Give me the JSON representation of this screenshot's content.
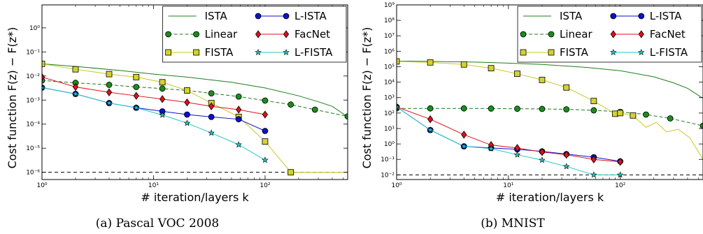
{
  "colors": {
    "ista": "#1e7d1e",
    "linear": "#1a7a1a",
    "linear_marker": "#1c8c1c",
    "fista": "#c8c81e",
    "fista_marker": "#d2d232",
    "l_ista": "#0b11cc",
    "facnet": "#e0101a",
    "l_fista": "#20c8c8",
    "reference": "#000000"
  },
  "chart_data": [
    {
      "type": "line",
      "caption": "(a) Pascal VOC 2008",
      "xlabel": "# iteration/layers k",
      "ylabel": "Cost function F(z) − F(z*)",
      "xscale": "log",
      "yscale": "log",
      "xlim": [
        1,
        550
      ],
      "ylim": [
        5e-07,
        9
      ],
      "xticks": [
        {
          "v": 1,
          "label": "10⁰"
        },
        {
          "v": 10,
          "label": "10¹"
        },
        {
          "v": 100,
          "label": "10²"
        }
      ],
      "yticks": [
        {
          "v": 1e-06,
          "label": "10⁻⁶"
        },
        {
          "v": 1e-05,
          "label": "10⁻⁵"
        },
        {
          "v": 0.0001,
          "label": "10⁻⁴"
        },
        {
          "v": 0.001,
          "label": "10⁻³"
        },
        {
          "v": 0.01,
          "label": "10⁻²"
        },
        {
          "v": 0.1,
          "label": "10⁻¹"
        },
        {
          "v": 1,
          "label": "10⁰"
        }
      ],
      "legend": "top-right",
      "reference_line": 1e-06,
      "series": [
        {
          "key": "ista",
          "name": "ISTA",
          "marker": "none",
          "dash": false,
          "x": [
            1,
            2,
            5,
            10,
            20,
            50,
            100,
            200,
            300,
            400,
            550
          ],
          "y": [
            0.032,
            0.025,
            0.017,
            0.012,
            0.009,
            0.0055,
            0.0032,
            0.0015,
            0.00085,
            0.00055,
            0.0002
          ]
        },
        {
          "key": "linear",
          "name": "Linear",
          "marker": "circle",
          "dash": true,
          "x": [
            1,
            2,
            4,
            7,
            12,
            20,
            33,
            58,
            100,
            170,
            280,
            550
          ],
          "y": [
            0.0065,
            0.0052,
            0.0043,
            0.0035,
            0.003,
            0.0025,
            0.0019,
            0.0014,
            0.00095,
            0.00065,
            0.0004,
            0.00021
          ]
        },
        {
          "key": "fista",
          "name": "FISTA",
          "marker": "square",
          "dash": false,
          "x": [
            1,
            2,
            4,
            7,
            12,
            20,
            33,
            58,
            100,
            170,
            280,
            550
          ],
          "y": [
            0.032,
            0.019,
            0.012,
            0.009,
            0.0055,
            0.0025,
            0.00075,
            0.0002,
            1.9e-05,
            1e-06,
            1e-06,
            1e-06
          ],
          "marker_count": 10
        },
        {
          "key": "l_ista",
          "name": "L-ISTA",
          "marker": "circle",
          "dash": false,
          "x": [
            1,
            2,
            4,
            7,
            12,
            20,
            33,
            58,
            100
          ],
          "y": [
            0.0033,
            0.0018,
            0.00075,
            0.00048,
            0.00034,
            0.00025,
            0.0002,
            0.00016,
            5.2e-05
          ]
        },
        {
          "key": "facnet",
          "name": "FacNet",
          "marker": "diamond",
          "dash": false,
          "x": [
            1,
            2,
            4,
            7,
            12,
            20,
            33,
            58,
            100
          ],
          "y": [
            0.009,
            0.0035,
            0.0021,
            0.0015,
            0.0011,
            0.0008,
            0.00055,
            0.0004,
            0.00025
          ]
        },
        {
          "key": "l_fista",
          "name": "L-FISTA",
          "marker": "star",
          "dash": false,
          "x": [
            1,
            2,
            4,
            7,
            12,
            20,
            33,
            58,
            100
          ],
          "y": [
            0.0033,
            0.0018,
            0.00075,
            0.00048,
            0.00024,
            0.00011,
            4.3e-05,
            1.4e-05,
            3.2e-06
          ]
        }
      ]
    },
    {
      "type": "line",
      "caption": "(b) MNIST",
      "xlabel": "# iteration/layers k",
      "ylabel": "Cost function F(z) − F(z*)",
      "xscale": "log",
      "yscale": "log",
      "xlim": [
        1,
        550
      ],
      "ylim": [
        0.005,
        1000000000.0
      ],
      "xticks": [
        {
          "v": 1,
          "label": "10⁰"
        },
        {
          "v": 10,
          "label": "10¹"
        },
        {
          "v": 100,
          "label": "10²"
        }
      ],
      "yticks": [
        {
          "v": 0.01,
          "label": "10⁻²"
        },
        {
          "v": 0.1,
          "label": "10⁻¹"
        },
        {
          "v": 1,
          "label": "10⁰"
        },
        {
          "v": 10,
          "label": "10¹"
        },
        {
          "v": 100,
          "label": "10²"
        },
        {
          "v": 1000,
          "label": "10³"
        },
        {
          "v": 10000.0,
          "label": "10⁴"
        },
        {
          "v": 100000.0,
          "label": "10⁵"
        },
        {
          "v": 1000000.0,
          "label": "10⁶"
        },
        {
          "v": 10000000.0,
          "label": "10⁷"
        },
        {
          "v": 100000000.0,
          "label": "10⁸"
        },
        {
          "v": 1000000000.0,
          "label": "10⁹"
        }
      ],
      "legend": "top-right",
      "reference_line": 0.01,
      "series": [
        {
          "key": "ista",
          "name": "ISTA",
          "marker": "none",
          "dash": false,
          "x": [
            1,
            2,
            5,
            10,
            20,
            50,
            100,
            200,
            300,
            400,
            550
          ],
          "y": [
            230000,
            220000,
            200000,
            170000,
            140000,
            90000,
            55000,
            22000,
            9000,
            4000,
            900
          ]
        },
        {
          "key": "linear",
          "name": "Linear",
          "marker": "circle",
          "dash": true,
          "x": [
            1,
            2,
            4,
            7,
            12,
            20,
            33,
            58,
            100,
            170,
            280,
            550
          ],
          "y": [
            200,
            200,
            200,
            195,
            190,
            185,
            175,
            150,
            120,
            80,
            45,
            15
          ]
        },
        {
          "key": "fista",
          "name": "FISTA",
          "marker": "square",
          "dash": false,
          "x": [
            1,
            2,
            4,
            7,
            12,
            20,
            33,
            58,
            90,
            100,
            130,
            170,
            210,
            260,
            330,
            420,
            550
          ],
          "y": [
            220000,
            190000,
            140000,
            80000,
            35000,
            14000,
            4500,
            600,
            90,
            100,
            70,
            12,
            25,
            6,
            9,
            2.5,
            0.1
          ],
          "marker_count": 11
        },
        {
          "key": "l_ista",
          "name": "L-ISTA",
          "marker": "circle",
          "dash": false,
          "x": [
            1,
            2,
            4,
            7,
            12,
            20,
            33,
            58,
            100
          ],
          "y": [
            250,
            8,
            0.7,
            0.55,
            0.45,
            0.33,
            0.22,
            0.14,
            0.075
          ]
        },
        {
          "key": "facnet",
          "name": "FacNet",
          "marker": "diamond",
          "dash": false,
          "x": [
            1,
            2,
            4,
            7,
            12,
            20,
            33,
            58,
            100
          ],
          "y": [
            250,
            40,
            4,
            0.85,
            0.55,
            0.3,
            0.2,
            0.1,
            0.07
          ]
        },
        {
          "key": "l_fista",
          "name": "L-FISTA",
          "marker": "star",
          "dash": false,
          "x": [
            1,
            2,
            4,
            7,
            12,
            20,
            33,
            58,
            100
          ],
          "y": [
            250,
            8,
            0.7,
            0.5,
            0.2,
            0.09,
            0.035,
            0.01,
            0.01
          ]
        }
      ]
    }
  ]
}
